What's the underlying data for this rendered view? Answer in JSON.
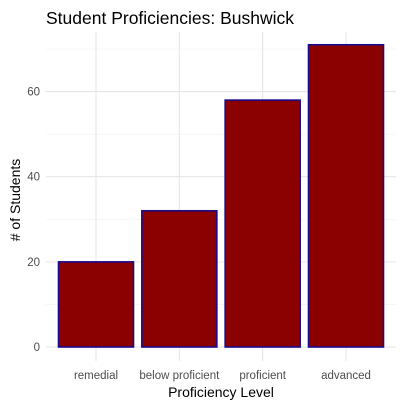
{
  "chart_data": {
    "type": "bar",
    "title": "Student Proficiencies: Bushwick",
    "xlabel": "Proficiency Level",
    "ylabel": "# of Students",
    "categories": [
      "remedial",
      "below proficient",
      "proficient",
      "advanced"
    ],
    "values": [
      20,
      32,
      58,
      71
    ],
    "ylim": [
      0,
      74
    ],
    "yticks": [
      0,
      20,
      40,
      60
    ],
    "grid": true,
    "colors": {
      "bar_fill": "#8b0000",
      "bar_stroke": "#1a0a8c",
      "grid_major": "#e6e6e6",
      "grid_minor": "#f2f2f2",
      "tick_text": "#4d4d4d",
      "label_text": "#000000"
    }
  }
}
